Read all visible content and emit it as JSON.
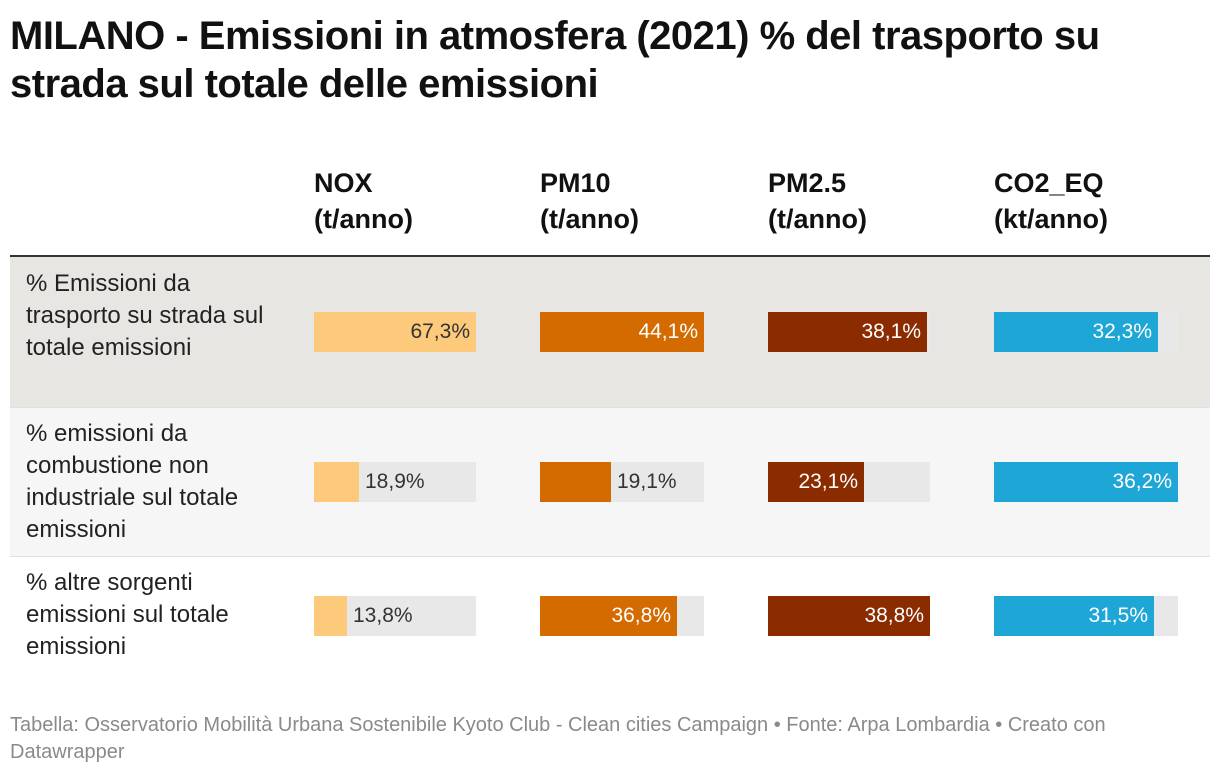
{
  "title": "MILANO - Emissioni in atmosfera (2021) % del trasporto su strada sul totale delle emissioni",
  "columns": [
    {
      "name": "NOX",
      "unit": "(t/anno)",
      "color": "#fdc97a",
      "text_inside": "#333333"
    },
    {
      "name": "PM10",
      "unit": "(t/anno)",
      "color": "#d46b00",
      "text_inside": "#ffffff"
    },
    {
      "name": "PM2.5",
      "unit": "(t/anno)",
      "color": "#8a2c00",
      "text_inside": "#ffffff"
    },
    {
      "name": "CO2_EQ",
      "unit": "(kt/anno)",
      "color": "#1ea7d6",
      "text_inside": "#ffffff"
    }
  ],
  "rows": [
    {
      "label": "% Emissioni da trasporto su strada sul totale emissioni",
      "labels": [
        "67,3%",
        "44,1%",
        "38,1%",
        "32,3%"
      ]
    },
    {
      "label": "% emissioni da combustione non industriale sul totale emissioni",
      "labels": [
        "18,9%",
        "19,1%",
        "23,1%",
        "36,2%"
      ]
    },
    {
      "label": "% altre sorgenti emissioni sul totale emissioni",
      "labels": [
        "13,8%",
        "36,8%",
        "38,8%",
        "31,5%"
      ]
    }
  ],
  "chart_data": {
    "type": "table",
    "title": "MILANO - Emissioni in atmosfera (2021) % del trasporto su strada sul totale delle emissioni",
    "columns": [
      "NOX (t/anno)",
      "PM10 (t/anno)",
      "PM2.5 (t/anno)",
      "CO2_EQ (kt/anno)"
    ],
    "categories": [
      "% Emissioni da trasporto su strada sul totale emissioni",
      "% emissioni da combustione non industriale sul totale emissioni",
      "% altre sorgenti emissioni sul totale emissioni"
    ],
    "values": [
      [
        67.3,
        44.1,
        38.1,
        32.3
      ],
      [
        18.9,
        19.1,
        23.1,
        36.2
      ],
      [
        13.8,
        36.8,
        38.8,
        31.5
      ]
    ],
    "column_max": [
      67.3,
      44.1,
      38.8,
      36.2
    ],
    "unit": "%"
  },
  "source": "Tabella: Osservatorio Mobilità Urbana Sostenibile Kyoto Club - Clean cities Campaign • Fonte: Arpa Lombardia • Creato con Datawrapper"
}
